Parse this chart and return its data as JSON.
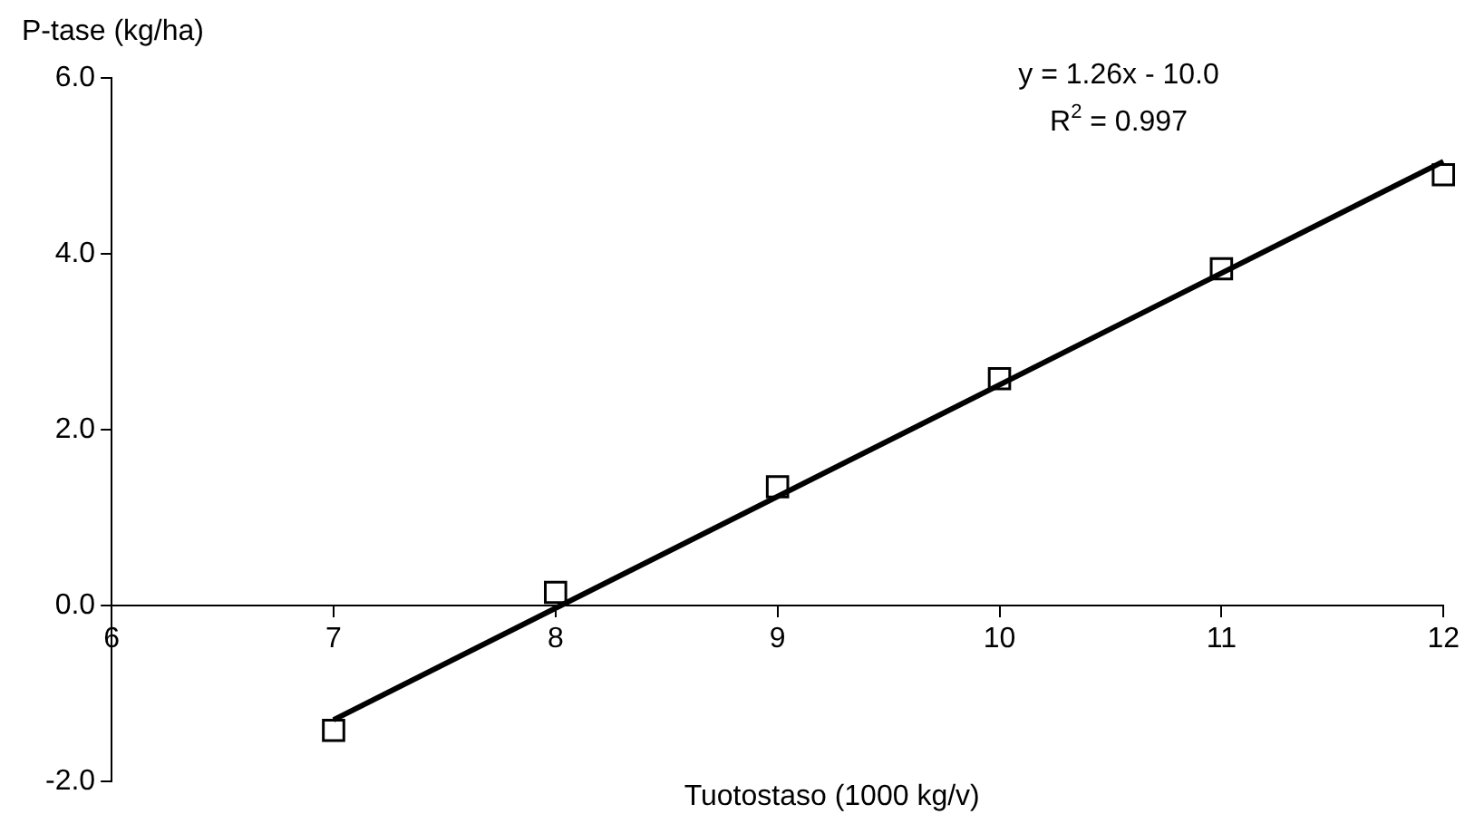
{
  "chart_data": {
    "type": "scatter",
    "xlabel": "Tuotostaso (1000 kg/v)",
    "ylabel": "P-tase (kg/ha)",
    "annotations": [
      "y = 1.26x - 10.0",
      "R$^{2}$ = 0.997"
    ],
    "xlim": [
      6,
      12
    ],
    "xticks": [
      6,
      7,
      8,
      9,
      10,
      11,
      12
    ],
    "ylim": [
      -2,
      6
    ],
    "yticks": [
      {
        "value": -2,
        "label": "-2.0"
      },
      {
        "value": 0,
        "label": "0.0"
      },
      {
        "value": 2,
        "label": "2.0"
      },
      {
        "value": 4,
        "label": "4.0"
      },
      {
        "value": 6,
        "label": "6.0"
      }
    ],
    "grid": false,
    "legend": false,
    "marker": "square",
    "series": [
      {
        "type": "line",
        "color": "#000000",
        "x": [
          7,
          12
        ],
        "values": [
          -1.3,
          5.05
        ],
        "marker": "none"
      },
      {
        "type": "scatter",
        "color": "#000000",
        "x": [
          7,
          8,
          9,
          10,
          11,
          12
        ],
        "values": [
          -1.42,
          0.15,
          1.35,
          2.58,
          3.83,
          4.9
        ]
      }
    ]
  }
}
